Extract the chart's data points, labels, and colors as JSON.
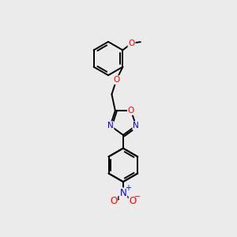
{
  "bg_color": "#ebebeb",
  "bond_color": "#000000",
  "atom_colors": {
    "O": "#ff0000",
    "N": "#0000ff",
    "C": "#000000"
  },
  "bond_width": 1.4,
  "fig_size": [
    3.0,
    3.0
  ],
  "dpi": 100
}
